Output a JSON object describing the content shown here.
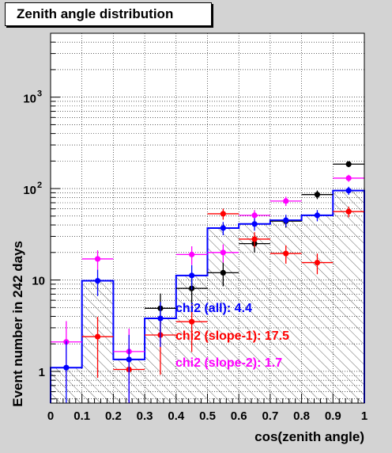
{
  "chart_data": {
    "type": "histogram",
    "title": "Zenith angle distribution",
    "xlabel": "cos(zenith angle)",
    "ylabel": "Event number in 242 days",
    "xlim": [
      0,
      1
    ],
    "ylim": [
      0.45,
      5000
    ],
    "yscale": "log",
    "grid": true,
    "x_ticks": [
      "0",
      "0.1",
      "0.2",
      "0.3",
      "0.4",
      "0.5",
      "0.6",
      "0.7",
      "0.8",
      "0.9",
      "1"
    ],
    "y_ticks": [
      {
        "value": 1,
        "label": "1"
      },
      {
        "value": 10,
        "label": "10"
      },
      {
        "value": 100,
        "label": "10",
        "exp": "2"
      },
      {
        "value": 1000,
        "label": "10",
        "exp": "3"
      }
    ],
    "bin_edges": [
      0,
      0.1,
      0.2,
      0.3,
      0.4,
      0.5,
      0.6,
      0.7,
      0.8,
      0.9,
      1.0
    ],
    "expected_histogram": {
      "color": "#0000ff",
      "fill": "hatched",
      "values": [
        1.1,
        9.8,
        1.35,
        3.8,
        11.2,
        37,
        41,
        45,
        51,
        95
      ]
    },
    "series": [
      {
        "color": "#000000",
        "x": [
          0.35,
          0.45,
          0.55,
          0.65,
          0.75,
          0.85,
          0.95
        ],
        "y": [
          4.9,
          8.1,
          12,
          25,
          44,
          86,
          185
        ]
      },
      {
        "color": "#ff0000",
        "x": [
          0.15,
          0.25,
          0.35,
          0.45,
          0.55,
          0.65,
          0.75,
          0.85,
          0.95
        ],
        "y": [
          2.4,
          1.05,
          2.5,
          3.5,
          53,
          28,
          19.5,
          15.5,
          56
        ]
      },
      {
        "color": "#ff00ff",
        "x": [
          0.05,
          0.15,
          0.25,
          0.45,
          0.55,
          0.65,
          0.75,
          0.95
        ],
        "y": [
          2.1,
          17,
          1.65,
          19,
          20,
          51,
          73,
          130
        ]
      },
      {
        "color": "#0000ff",
        "x": [
          0.05,
          0.15,
          0.25,
          0.35,
          0.45,
          0.55,
          0.65,
          0.75,
          0.85,
          0.95
        ],
        "y": [
          1.1,
          9.8,
          1.35,
          3.8,
          11.2,
          37,
          41,
          45,
          51,
          95
        ]
      }
    ],
    "annotations": [
      {
        "text": "chi2 (all): 4.4",
        "color": "#0000ff"
      },
      {
        "text": "chi2 (slope-1): 17.5",
        "color": "#ff0000"
      },
      {
        "text": "chi2 (slope-2): 1.7",
        "color": "#ff00ff"
      }
    ]
  }
}
